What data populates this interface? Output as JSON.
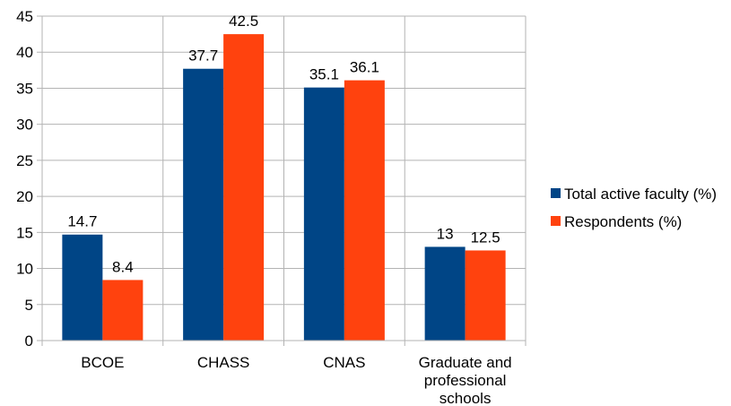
{
  "chart_data": {
    "type": "bar",
    "categories": [
      [
        "BCOE"
      ],
      [
        "CHASS"
      ],
      [
        "CNAS"
      ],
      [
        "Graduate and",
        "professional",
        "schools"
      ]
    ],
    "series": [
      {
        "name": "Total active faculty (%)",
        "color": "#004586",
        "values": [
          14.7,
          37.7,
          35.1,
          13
        ]
      },
      {
        "name": "Respondents (%)",
        "color": "#ff420e",
        "values": [
          8.4,
          42.5,
          36.1,
          12.5
        ]
      }
    ],
    "ylim": [
      0,
      45
    ],
    "yticks": [
      0,
      5,
      10,
      15,
      20,
      25,
      30,
      35,
      40,
      45
    ],
    "grid": true,
    "legend_position": "right",
    "title": "",
    "xlabel": "",
    "ylabel": ""
  }
}
